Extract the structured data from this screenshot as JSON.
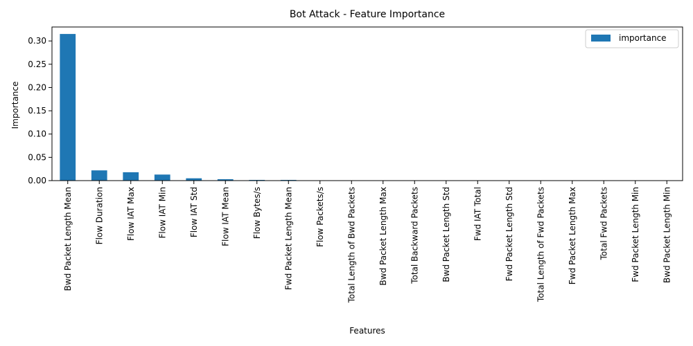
{
  "chart_data": {
    "type": "bar",
    "title": "Bot Attack - Feature Importance",
    "xlabel": "Features",
    "ylabel": "Importance",
    "ylim": [
      0,
      0.33
    ],
    "yticks": [
      0.0,
      0.05,
      0.1,
      0.15,
      0.2,
      0.25,
      0.3
    ],
    "ytick_labels": [
      "0.00",
      "0.05",
      "0.10",
      "0.15",
      "0.20",
      "0.25",
      "0.30"
    ],
    "legend": {
      "position": "top-right",
      "entries": [
        "importance"
      ]
    },
    "grid": false,
    "colors": {
      "bar": "#1f77b4"
    },
    "categories": [
      "Bwd Packet Length Mean",
      "Flow Duration",
      "Flow IAT Max",
      "Flow IAT Min",
      "Flow IAT Std",
      "Flow IAT Mean",
      "Flow Bytes/s",
      "Fwd Packet Length Mean",
      "Flow Packets/s",
      "Total Length of Bwd Packets",
      "Bwd Packet Length Max",
      "Total Backward Packets",
      "Bwd Packet Length Std",
      "Fwd IAT Total",
      "Fwd Packet Length Std",
      "Total Length of Fwd Packets",
      "Fwd Packet Length Max",
      "Total Fwd Packets",
      "Fwd Packet Length Min",
      "Bwd Packet Length Min"
    ],
    "series": [
      {
        "name": "importance",
        "values": [
          0.315,
          0.022,
          0.018,
          0.013,
          0.005,
          0.003,
          0.0015,
          0.0015,
          0.0003,
          0.0002,
          0.0001,
          0.0001,
          0.0001,
          0.0001,
          0.0,
          0.0,
          0.0,
          0.0,
          0.0,
          0.0
        ]
      }
    ]
  }
}
